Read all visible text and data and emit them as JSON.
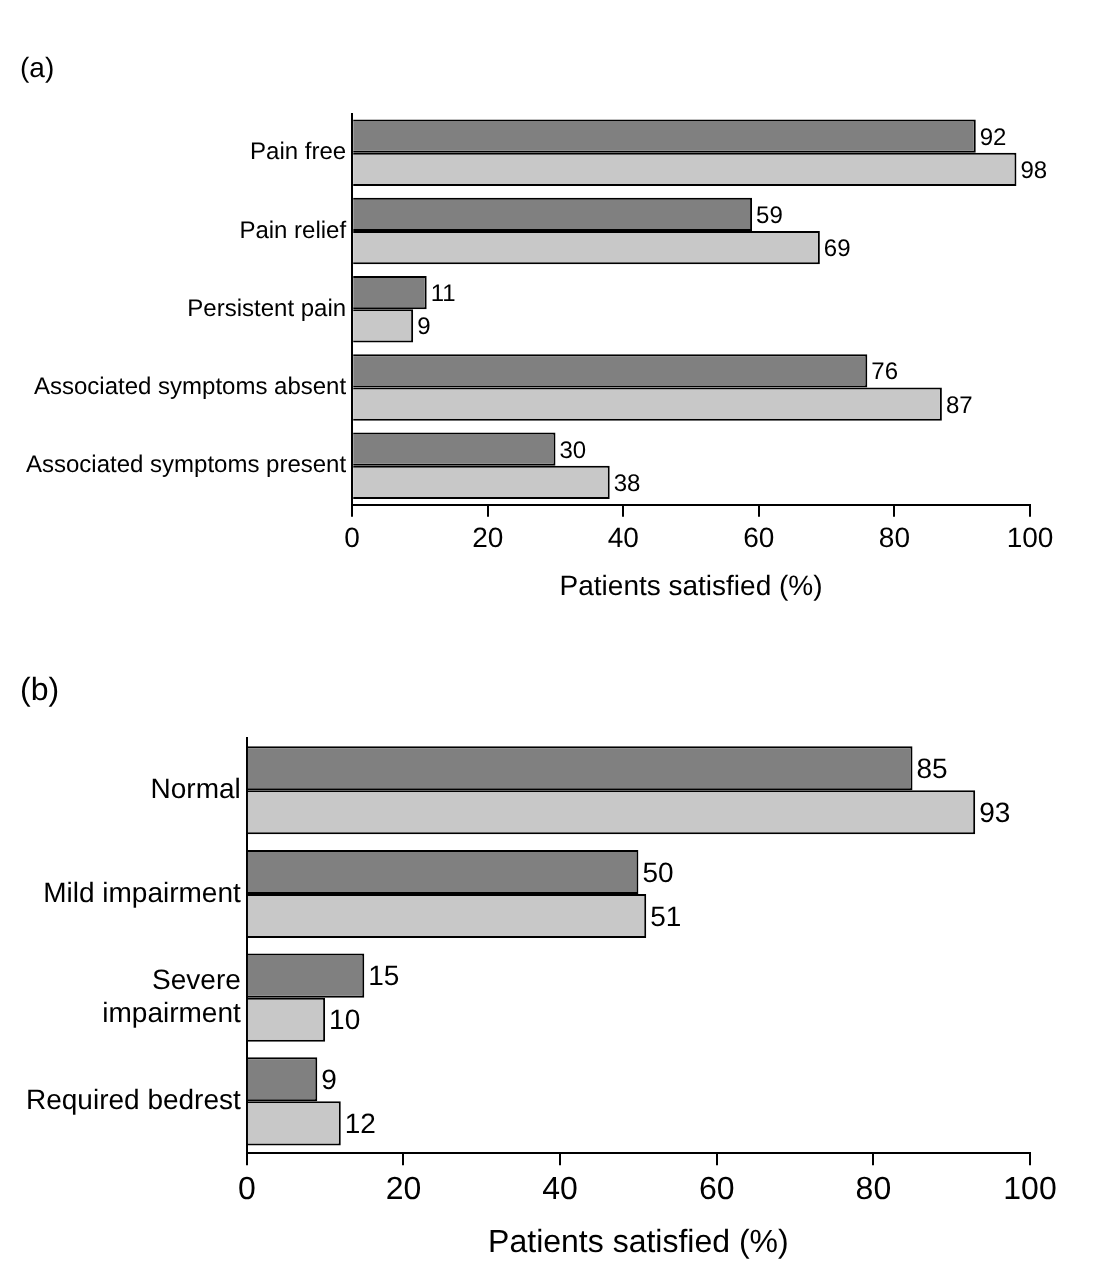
{
  "chart_data": [
    {
      "type": "bar",
      "orientation": "horizontal",
      "title": "(a)",
      "xlabel": "Patients satisfied (%)",
      "categories": [
        "Pain free",
        "Pain relief",
        "Persistent pain",
        "Associated symptoms absent",
        "Associated symptoms present"
      ],
      "series": [
        {
          "color": "#808080",
          "values": [
            92,
            59,
            11,
            76,
            30
          ]
        },
        {
          "color": "#c8c8c8",
          "values": [
            98,
            69,
            9,
            87,
            38
          ]
        }
      ],
      "xlim": [
        0,
        100
      ],
      "xticks": [
        0,
        20,
        40,
        60,
        80,
        100
      ],
      "data_labels": true,
      "grid": false,
      "legend": false
    },
    {
      "type": "bar",
      "orientation": "horizontal",
      "title": "(b)",
      "xlabel": "Patients satisfied (%)",
      "categories": [
        "Normal",
        "Mild impairment",
        "Severe impairment",
        "Required bedrest"
      ],
      "series": [
        {
          "color": "#808080",
          "values": [
            85,
            50,
            15,
            9
          ]
        },
        {
          "color": "#c8c8c8",
          "values": [
            93,
            51,
            10,
            12
          ]
        }
      ],
      "xlim": [
        0,
        100
      ],
      "xticks": [
        0,
        20,
        40,
        60,
        80,
        100
      ],
      "data_labels": true,
      "grid": false,
      "legend": false
    }
  ]
}
